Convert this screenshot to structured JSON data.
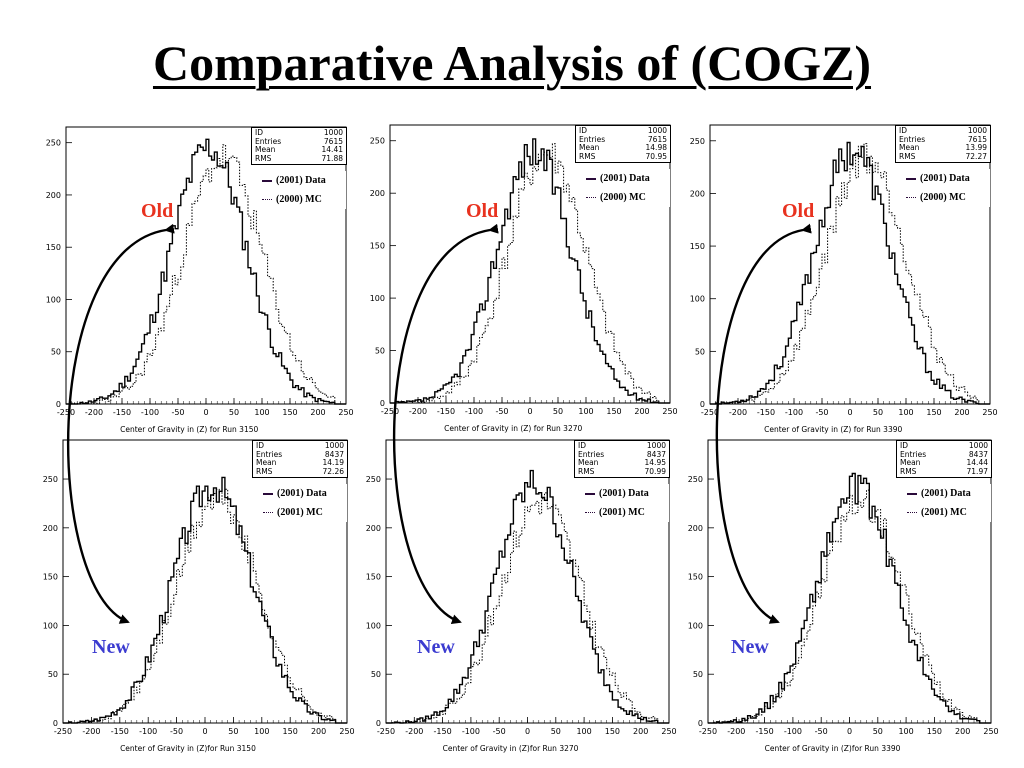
{
  "title": "Comparative Analysis of (COGZ)",
  "labels": {
    "old": "Old",
    "new": "New"
  },
  "colors": {
    "old_label": "#e8321f",
    "new_label": "#3b3bd0",
    "data_line": "#000000",
    "mc_line": "#000000"
  },
  "chart_data": [
    {
      "type": "histogram",
      "run": "3150",
      "row": "old",
      "xlabel": "Center of Gravity in (Z) for Run 3150",
      "xlim": [
        -250,
        250
      ],
      "ylim": [
        0,
        265
      ],
      "xticks": [
        "-250",
        "-200",
        "-150",
        "-100",
        "-50",
        "0",
        "50",
        "100",
        "150",
        "200",
        "250"
      ],
      "yticks": [
        "0",
        "50",
        "100",
        "150",
        "200",
        "250"
      ],
      "stats": {
        "ID": "1000",
        "Entries": "7615",
        "Mean": "14.41",
        "RMS": "71.88"
      },
      "legend": [
        "(2001) Data",
        "(2000) MC"
      ],
      "series": [
        {
          "name": "(2001) Data",
          "style": "solid",
          "mean": 5,
          "sigma": 68,
          "peak": 245,
          "seed": 11
        },
        {
          "name": "(2000) MC",
          "style": "dotted",
          "mean": 30,
          "sigma": 72,
          "peak": 235,
          "seed": 23
        }
      ]
    },
    {
      "type": "histogram",
      "run": "3270",
      "row": "old",
      "xlabel": "Center of Gravity in (Z) for Run 3270",
      "xlim": [
        -250,
        250
      ],
      "ylim": [
        0,
        265
      ],
      "xticks": [
        "-250",
        "-200",
        "-150",
        "-100",
        "-50",
        "0",
        "50",
        "100",
        "150",
        "200",
        "250"
      ],
      "yticks": [
        "0",
        "50",
        "100",
        "150",
        "200",
        "250"
      ],
      "stats": {
        "ID": "1000",
        "Entries": "7615",
        "Mean": "14.98",
        "RMS": "70.95"
      },
      "legend": [
        "(2001) Data",
        "(2000) MC"
      ],
      "series": [
        {
          "name": "(2001) Data",
          "style": "solid",
          "mean": 8,
          "sigma": 67,
          "peak": 240,
          "seed": 37
        },
        {
          "name": "(2000) MC",
          "style": "dotted",
          "mean": 30,
          "sigma": 70,
          "peak": 238,
          "seed": 41
        }
      ]
    },
    {
      "type": "histogram",
      "run": "3390",
      "row": "old",
      "xlabel": "Center of Gravity in (Z) for Run 3390",
      "xlim": [
        -250,
        250
      ],
      "ylim": [
        0,
        265
      ],
      "xticks": [
        "-250",
        "-200",
        "-150",
        "-100",
        "-50",
        "0",
        "50",
        "100",
        "150",
        "200",
        "250"
      ],
      "yticks": [
        "0",
        "50",
        "100",
        "150",
        "200",
        "250"
      ],
      "stats": {
        "ID": "1000",
        "Entries": "7615",
        "Mean": "13.99",
        "RMS": "72.27"
      },
      "legend": [
        "(2001) Data",
        "(2000) MC"
      ],
      "series": [
        {
          "name": "(2001) Data",
          "style": "solid",
          "mean": 5,
          "sigma": 68,
          "peak": 242,
          "seed": 53
        },
        {
          "name": "(2000) MC",
          "style": "dotted",
          "mean": 28,
          "sigma": 72,
          "peak": 236,
          "seed": 59
        }
      ]
    },
    {
      "type": "histogram",
      "run": "3150",
      "row": "new",
      "xlabel": "Center of Gravity in (Z)for Run 3150",
      "xlim": [
        -250,
        250
      ],
      "ylim": [
        0,
        290
      ],
      "xticks": [
        "-250",
        "-200",
        "-150",
        "-100",
        "-50",
        "0",
        "50",
        "100",
        "150",
        "200",
        "250"
      ],
      "yticks": [
        "0",
        "50",
        "100",
        "150",
        "200",
        "250"
      ],
      "stats": {
        "ID": "1000",
        "Entries": "8437",
        "Mean": "14.19",
        "RMS": "72.26"
      },
      "legend": [
        "(2001) Data",
        "(2001) MC"
      ],
      "series": [
        {
          "name": "(2001) Data",
          "style": "solid",
          "mean": 14,
          "sigma": 70,
          "peak": 245,
          "seed": 67
        },
        {
          "name": "(2001) MC",
          "style": "dotted",
          "mean": 22,
          "sigma": 72,
          "peak": 230,
          "seed": 71
        }
      ]
    },
    {
      "type": "histogram",
      "run": "3270",
      "row": "new",
      "xlabel": "Center of Gravity in (Z)for Run 3270",
      "xlim": [
        -250,
        250
      ],
      "ylim": [
        0,
        290
      ],
      "xticks": [
        "-250",
        "-200",
        "-150",
        "-100",
        "-50",
        "0",
        "50",
        "100",
        "150",
        "200",
        "250"
      ],
      "yticks": [
        "0",
        "50",
        "100",
        "150",
        "200",
        "250"
      ],
      "stats": {
        "ID": "1000",
        "Entries": "8437",
        "Mean": "14.95",
        "RMS": "70.99"
      },
      "legend": [
        "(2001) Data",
        "(2001) MC"
      ],
      "series": [
        {
          "name": "(2001) Data",
          "style": "solid",
          "mean": 12,
          "sigma": 68,
          "peak": 245,
          "seed": 79
        },
        {
          "name": "(2001) MC",
          "style": "dotted",
          "mean": 24,
          "sigma": 71,
          "peak": 228,
          "seed": 83
        }
      ]
    },
    {
      "type": "histogram",
      "run": "3390",
      "row": "new",
      "xlabel": "Center of Gravity in (Z)for Run 3390",
      "xlim": [
        -250,
        250
      ],
      "ylim": [
        0,
        290
      ],
      "xticks": [
        "-250",
        "-200",
        "-150",
        "-100",
        "-50",
        "0",
        "50",
        "100",
        "150",
        "200",
        "250"
      ],
      "yticks": [
        "0",
        "50",
        "100",
        "150",
        "200",
        "250"
      ],
      "stats": {
        "ID": "1000",
        "Entries": "8437",
        "Mean": "14.44",
        "RMS": "71.97"
      },
      "legend": [
        "(2001) Data",
        "(2001) MC"
      ],
      "series": [
        {
          "name": "(2001) Data",
          "style": "solid",
          "mean": 12,
          "sigma": 69,
          "peak": 240,
          "seed": 89
        },
        {
          "name": "(2001) MC",
          "style": "dotted",
          "mean": 22,
          "sigma": 72,
          "peak": 228,
          "seed": 97
        }
      ]
    }
  ]
}
